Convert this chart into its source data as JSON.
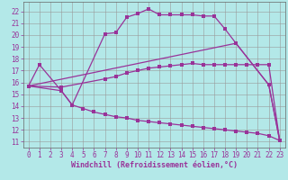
{
  "xlabel": "Windchill (Refroidissement éolien,°C)",
  "background_color": "#b3e8e8",
  "grid_color": "#999999",
  "line_color": "#993399",
  "xlim": [
    -0.5,
    23.5
  ],
  "ylim": [
    10.5,
    22.8
  ],
  "yticks": [
    11,
    12,
    13,
    14,
    15,
    16,
    17,
    18,
    19,
    20,
    21,
    22
  ],
  "xticks": [
    0,
    1,
    2,
    3,
    4,
    5,
    6,
    7,
    8,
    9,
    10,
    11,
    12,
    13,
    14,
    15,
    16,
    17,
    18,
    19,
    20,
    21,
    22,
    23
  ],
  "curve1_x": [
    0,
    1,
    3,
    4,
    7,
    8,
    9,
    10,
    11,
    12,
    13,
    14,
    15,
    16,
    17,
    18,
    19,
    22,
    23
  ],
  "curve1_y": [
    15.7,
    17.5,
    15.3,
    14.1,
    20.1,
    20.2,
    21.5,
    21.8,
    22.2,
    21.7,
    21.7,
    21.7,
    21.7,
    21.6,
    21.6,
    20.5,
    19.3,
    15.8,
    11.1
  ],
  "curve2_x": [
    0,
    19,
    22,
    23
  ],
  "curve2_y": [
    15.7,
    19.3,
    15.8,
    11.1
  ],
  "curve3_x": [
    0,
    3,
    4,
    5,
    6,
    7,
    8,
    9,
    10,
    11,
    12,
    13,
    14,
    15,
    16,
    17,
    18,
    19,
    20,
    21,
    22,
    23
  ],
  "curve3_y": [
    15.7,
    15.3,
    14.1,
    13.8,
    13.5,
    13.3,
    13.1,
    13.0,
    12.8,
    12.7,
    12.6,
    12.5,
    12.4,
    12.3,
    12.2,
    12.1,
    12.0,
    11.9,
    11.8,
    11.7,
    11.5,
    11.1
  ],
  "curve4_x": [
    0,
    3,
    7,
    8,
    9,
    10,
    11,
    12,
    13,
    14,
    15,
    16,
    17,
    18,
    19,
    20,
    21,
    22,
    23
  ],
  "curve4_y": [
    15.7,
    15.6,
    16.3,
    16.5,
    16.8,
    17.0,
    17.2,
    17.3,
    17.4,
    17.5,
    17.6,
    17.5,
    17.5,
    17.5,
    17.5,
    17.5,
    17.5,
    17.5,
    11.1
  ]
}
